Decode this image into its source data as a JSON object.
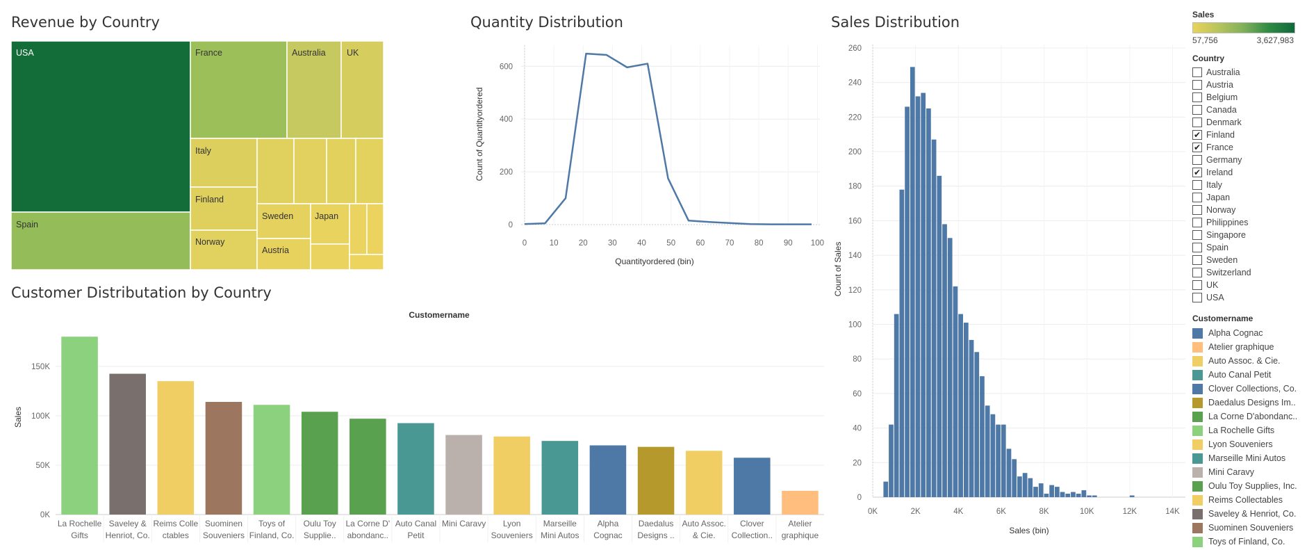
{
  "titles": {
    "revenue_by_country": "Revenue by Country",
    "quantity_distribution": "Quantity Distribution",
    "sales_distribution": "Sales Distribution",
    "customer_distribution": "Customer Distributation by Country"
  },
  "chart_data": [
    {
      "id": "treemap",
      "type": "treemap",
      "title": "Revenue by Country",
      "labels_shown": [
        "USA",
        "France",
        "Australia",
        "UK",
        "Italy",
        "Finland",
        "Spain",
        "Sweden",
        "Japan",
        "Norway",
        "Austria"
      ],
      "color_measure": "Sales",
      "color_range": [
        57756,
        3627983
      ]
    },
    {
      "id": "quantity",
      "type": "line",
      "title": "Quantity Distribution",
      "xlabel": "Quantityordered (bin)",
      "ylabel": "Count of Quantityordered",
      "x": [
        0,
        7,
        14,
        21,
        28,
        35,
        42,
        49,
        56,
        63,
        70,
        77,
        84,
        91,
        98
      ],
      "y": [
        2,
        5,
        100,
        648,
        643,
        596,
        610,
        175,
        15,
        10,
        6,
        2,
        1,
        1,
        1
      ],
      "xticks": [
        0,
        10,
        20,
        30,
        40,
        50,
        60,
        70,
        80,
        90,
        100
      ],
      "yticks": [
        0,
        200,
        400,
        600
      ],
      "xlim": [
        0,
        100
      ],
      "ylim": [
        0,
        680
      ],
      "color": "#4e79a7"
    },
    {
      "id": "sales_hist",
      "type": "bar",
      "title": "Sales Distribution",
      "xlabel": "Sales (bin)",
      "ylabel": "Count of Sales",
      "bin_width": 250,
      "x_start": 500,
      "values": [
        9,
        42,
        106,
        178,
        226,
        249,
        232,
        234,
        225,
        207,
        186,
        158,
        150,
        122,
        106,
        101,
        91,
        84,
        70,
        53,
        48,
        42,
        42,
        28,
        22,
        12,
        14,
        11,
        6,
        8,
        2,
        7,
        6,
        3,
        2,
        3,
        2,
        4,
        1,
        1,
        0,
        0,
        0,
        0,
        0,
        0,
        1
      ],
      "xticks": [
        "0K",
        "2K",
        "4K",
        "6K",
        "8K",
        "10K",
        "12K",
        "14K"
      ],
      "xtick_values": [
        0,
        2000,
        4000,
        6000,
        8000,
        10000,
        12000,
        14000
      ],
      "yticks": [
        0,
        20,
        40,
        60,
        80,
        100,
        120,
        140,
        160,
        180,
        200,
        220,
        240,
        260
      ],
      "xlim": [
        0,
        14600
      ],
      "ylim": [
        0,
        262
      ],
      "color": "#4e79a7"
    },
    {
      "id": "customers",
      "type": "bar",
      "title": "Customer Distributation by Country",
      "column_header": "Customername",
      "ylabel": "Sales",
      "categories": [
        [
          "La Rochelle",
          "Gifts"
        ],
        [
          "Saveley &",
          "Henriot, Co."
        ],
        [
          "Reims Colle",
          "ctables"
        ],
        [
          "Suominen",
          "Souveniers"
        ],
        [
          "Toys of",
          "Finland, Co."
        ],
        [
          "Oulu Toy",
          "Supplie.."
        ],
        [
          "La Corne D'",
          "abondanc.."
        ],
        [
          "Auto Canal",
          "Petit"
        ],
        [
          "Mini Caravy"
        ],
        [
          "Lyon",
          "Souveniers"
        ],
        [
          "Marseille",
          "Mini Autos"
        ],
        [
          "Alpha",
          "Cognac"
        ],
        [
          "Daedalus",
          "Designs .."
        ],
        [
          "Auto Assoc.",
          "& Cie."
        ],
        [
          "Clover",
          "Collection.."
        ],
        [
          "Atelier",
          "graphique"
        ]
      ],
      "values": [
        180000,
        142500,
        135000,
        114000,
        111000,
        104000,
        97000,
        92500,
        80500,
        79000,
        74500,
        70000,
        68500,
        64500,
        57500,
        24000
      ],
      "colors": [
        "#8cd17d",
        "#79706e",
        "#f1ce63",
        "#9d7660",
        "#8cd17d",
        "#59a14f",
        "#59a14f",
        "#499894",
        "#bab0ac",
        "#f1ce63",
        "#499894",
        "#4e79a7",
        "#b6992d",
        "#f1ce63",
        "#4e79a7",
        "#ffbe7d"
      ],
      "yticks": [
        "0K",
        "50K",
        "100K",
        "150K"
      ],
      "ytick_values": [
        0,
        50000,
        100000,
        150000
      ],
      "ylim": [
        0,
        190000
      ]
    }
  ],
  "legend": {
    "sales_title": "Sales",
    "sales_min": "57,756",
    "sales_max": "3,627,983",
    "country_title": "Country",
    "countries": [
      {
        "name": "Australia",
        "checked": false
      },
      {
        "name": "Austria",
        "checked": false
      },
      {
        "name": "Belgium",
        "checked": false
      },
      {
        "name": "Canada",
        "checked": false
      },
      {
        "name": "Denmark",
        "checked": false
      },
      {
        "name": "Finland",
        "checked": true
      },
      {
        "name": "France",
        "checked": true
      },
      {
        "name": "Germany",
        "checked": false
      },
      {
        "name": "Ireland",
        "checked": true
      },
      {
        "name": "Italy",
        "checked": false
      },
      {
        "name": "Japan",
        "checked": false
      },
      {
        "name": "Norway",
        "checked": false
      },
      {
        "name": "Philippines",
        "checked": false
      },
      {
        "name": "Singapore",
        "checked": false
      },
      {
        "name": "Spain",
        "checked": false
      },
      {
        "name": "Sweden",
        "checked": false
      },
      {
        "name": "Switzerland",
        "checked": false
      },
      {
        "name": "UK",
        "checked": false
      },
      {
        "name": "USA",
        "checked": false
      }
    ],
    "customer_title": "Customername",
    "customers": [
      {
        "name": "Alpha Cognac",
        "color": "#4e79a7"
      },
      {
        "name": "Atelier graphique",
        "color": "#ffbe7d"
      },
      {
        "name": "Auto Assoc. & Cie.",
        "color": "#f1ce63"
      },
      {
        "name": "Auto Canal Petit",
        "color": "#499894"
      },
      {
        "name": "Clover Collections, Co.",
        "color": "#4e79a7"
      },
      {
        "name": "Daedalus Designs Im..",
        "color": "#b6992d"
      },
      {
        "name": "La Corne D'abondanc..",
        "color": "#59a14f"
      },
      {
        "name": "La Rochelle Gifts",
        "color": "#8cd17d"
      },
      {
        "name": "Lyon Souveniers",
        "color": "#f1ce63"
      },
      {
        "name": "Marseille Mini Autos",
        "color": "#499894"
      },
      {
        "name": "Mini Caravy",
        "color": "#bab0ac"
      },
      {
        "name": "Oulu Toy Supplies, Inc.",
        "color": "#59a14f"
      },
      {
        "name": "Reims Collectables",
        "color": "#f1ce63"
      },
      {
        "name": "Saveley & Henriot, Co.",
        "color": "#79706e"
      },
      {
        "name": "Suominen Souveniers",
        "color": "#9d7660"
      },
      {
        "name": "Toys of Finland, Co.",
        "color": "#8cd17d"
      }
    ]
  }
}
